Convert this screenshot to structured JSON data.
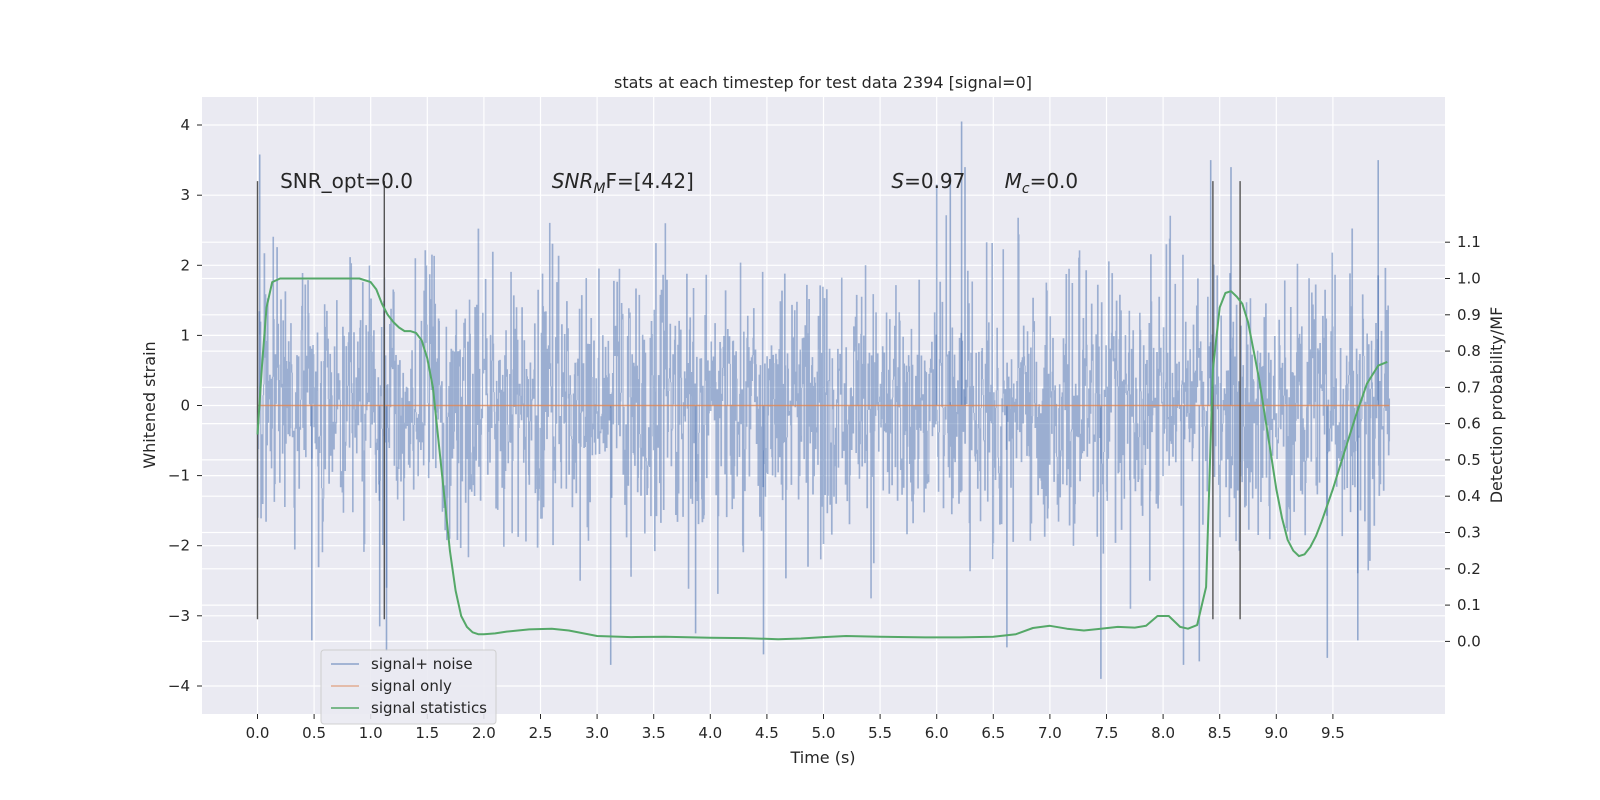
{
  "chart_data": {
    "type": "line",
    "title": "stats at each timestep for test data 2394 [signal=0]",
    "xlabel": "Time (s)",
    "ylabel": "Whitened strain",
    "y2label": "Detection probability/MF",
    "xlim": [
      -0.49,
      10.49
    ],
    "ylim": [
      -4.4,
      4.4
    ],
    "y2lim": [
      -0.2,
      1.5
    ],
    "xticks": [
      0.0,
      0.5,
      1.0,
      1.5,
      2.0,
      2.5,
      3.0,
      3.5,
      4.0,
      4.5,
      5.0,
      5.5,
      6.0,
      6.5,
      7.0,
      7.5,
      8.0,
      8.5,
      9.0,
      9.5
    ],
    "xtick_labels": [
      "0.0",
      "0.5",
      "1.0",
      "1.5",
      "2.0",
      "2.5",
      "3.0",
      "3.5",
      "4.0",
      "4.5",
      "5.0",
      "5.5",
      "6.0",
      "6.5",
      "7.0",
      "7.5",
      "8.0",
      "8.5",
      "9.0",
      "9.5"
    ],
    "yticks": [
      -4,
      -3,
      -2,
      -1,
      0,
      1,
      2,
      3,
      4
    ],
    "ytick_labels": [
      "−4",
      "−3",
      "−2",
      "−1",
      "0",
      "1",
      "2",
      "3",
      "4"
    ],
    "y2ticks": [
      0.0,
      0.1,
      0.2,
      0.3,
      0.4,
      0.5,
      0.6,
      0.7,
      0.8,
      0.9,
      1.0,
      1.1
    ],
    "y2tick_labels": [
      "0.0",
      "0.1",
      "0.2",
      "0.3",
      "0.4",
      "0.5",
      "0.6",
      "0.7",
      "0.8",
      "0.9",
      "1.0",
      "1.1"
    ],
    "grid": true,
    "legend_placement": "lower-left",
    "annotations": [
      {
        "plain": "SNR_opt=0.0",
        "x": 0.2,
        "y": 3.2
      },
      {
        "italic": "SNR",
        "sub": "M",
        "rest": "F=[4.42]",
        "x": 2.6,
        "y": 3.2
      },
      {
        "italic": "S",
        "sub": "",
        "rest": "=0.97",
        "x": 5.6,
        "y": 3.2
      },
      {
        "italic": "M",
        "sub": "c",
        "rest": "=0.0",
        "x": 6.6,
        "y": 3.2
      }
    ],
    "vertical_markers": [
      {
        "x": 0.0,
        "y_from": -3.05,
        "y_to": 3.2
      },
      {
        "x": 1.12,
        "y_from": -3.05,
        "y_to": 3.2
      },
      {
        "x": 8.44,
        "y_from": -3.05,
        "y_to": 3.2
      },
      {
        "x": 8.68,
        "y_from": -3.05,
        "y_to": 3.2
      }
    ],
    "noise_spikes": [
      {
        "x": 0.02,
        "y": 3.58
      },
      {
        "x": 0.48,
        "y": -3.35
      },
      {
        "x": 1.08,
        "y": -3.15
      },
      {
        "x": 1.14,
        "y": -3.5
      },
      {
        "x": 3.12,
        "y": -3.7
      },
      {
        "x": 3.87,
        "y": -3.25
      },
      {
        "x": 4.47,
        "y": -3.55
      },
      {
        "x": 6.0,
        "y": 3.15
      },
      {
        "x": 6.12,
        "y": 3.3
      },
      {
        "x": 6.22,
        "y": 4.05
      },
      {
        "x": 6.25,
        "y": 3.4
      },
      {
        "x": 6.62,
        "y": -3.45
      },
      {
        "x": 7.45,
        "y": -3.9
      },
      {
        "x": 8.18,
        "y": -3.7
      },
      {
        "x": 8.32,
        "y": -3.65
      },
      {
        "x": 8.42,
        "y": 3.5
      },
      {
        "x": 8.6,
        "y": 3.4
      },
      {
        "x": 9.45,
        "y": -3.6
      },
      {
        "x": 9.72,
        "y": -3.35
      },
      {
        "x": 9.9,
        "y": 3.5
      }
    ],
    "series": [
      {
        "name": "signal+ noise",
        "color": "#4C72B0",
        "envelope": "|y| approx 1.3-3.6 dense random noise over x 0 to 10",
        "x_range": [
          0.0,
          10.0
        ]
      },
      {
        "name": "signal only",
        "color": "#DD8452",
        "x": [
          0.0,
          10.0
        ],
        "y": [
          0.0,
          0.0
        ]
      },
      {
        "name": "signal statistics",
        "color": "#55A868",
        "axis": "right",
        "x": [
          0.0,
          0.04,
          0.08,
          0.13,
          0.2,
          0.3,
          0.4,
          0.5,
          0.6,
          0.7,
          0.8,
          0.9,
          1.0,
          1.05,
          1.1,
          1.15,
          1.2,
          1.25,
          1.3,
          1.35,
          1.4,
          1.45,
          1.5,
          1.55,
          1.6,
          1.65,
          1.7,
          1.75,
          1.8,
          1.85,
          1.9,
          1.95,
          2.0,
          2.1,
          2.2,
          2.4,
          2.6,
          2.75,
          3.0,
          3.3,
          3.6,
          4.0,
          4.3,
          4.6,
          4.8,
          5.0,
          5.2,
          5.5,
          5.9,
          6.2,
          6.5,
          6.7,
          6.85,
          7.0,
          7.15,
          7.3,
          7.45,
          7.6,
          7.75,
          7.85,
          7.95,
          8.05,
          8.15,
          8.22,
          8.3,
          8.38,
          8.44,
          8.5,
          8.55,
          8.6,
          8.65,
          8.7,
          8.75,
          8.8,
          8.85,
          8.9,
          8.95,
          9.0,
          9.05,
          9.1,
          9.15,
          9.2,
          9.25,
          9.3,
          9.35,
          9.4,
          9.5,
          9.6,
          9.7,
          9.8,
          9.9,
          9.98
        ],
        "y": [
          0.57,
          0.76,
          0.92,
          0.99,
          1.0,
          1.0,
          1.0,
          1.0,
          1.0,
          1.0,
          1.0,
          1.0,
          0.99,
          0.97,
          0.93,
          0.9,
          0.88,
          0.865,
          0.855,
          0.855,
          0.85,
          0.83,
          0.78,
          0.7,
          0.55,
          0.4,
          0.25,
          0.14,
          0.07,
          0.04,
          0.025,
          0.02,
          0.02,
          0.022,
          0.027,
          0.033,
          0.035,
          0.03,
          0.015,
          0.012,
          0.013,
          0.01,
          0.009,
          0.006,
          0.008,
          0.012,
          0.015,
          0.013,
          0.011,
          0.011,
          0.013,
          0.02,
          0.037,
          0.043,
          0.035,
          0.03,
          0.035,
          0.04,
          0.038,
          0.043,
          0.07,
          0.07,
          0.04,
          0.035,
          0.045,
          0.15,
          0.75,
          0.92,
          0.96,
          0.965,
          0.95,
          0.93,
          0.88,
          0.8,
          0.72,
          0.62,
          0.52,
          0.42,
          0.34,
          0.28,
          0.25,
          0.235,
          0.24,
          0.26,
          0.29,
          0.33,
          0.42,
          0.52,
          0.62,
          0.71,
          0.76,
          0.77
        ]
      }
    ]
  }
}
